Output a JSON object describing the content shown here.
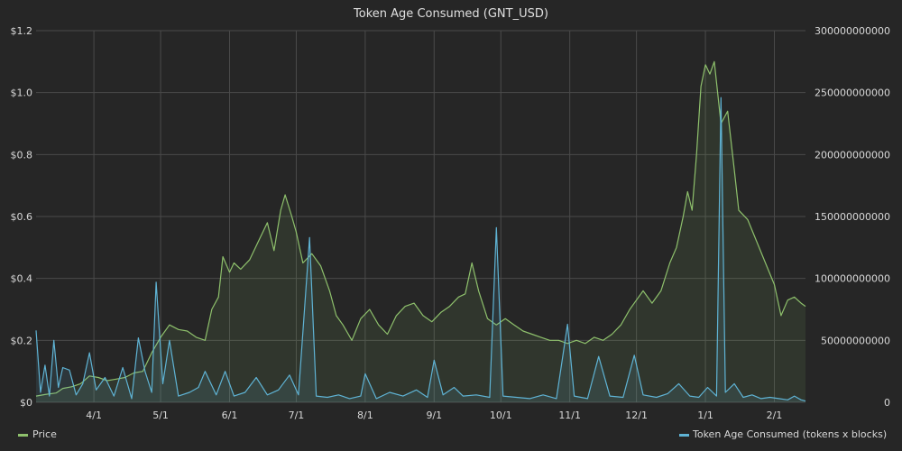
{
  "chart_data": {
    "type": "line",
    "title": "Token Age Consumed (GNT_USD)",
    "x_start": "2017-03-06",
    "x_end": "2018-02-15",
    "x_tick_labels": [
      "4/1",
      "5/1",
      "6/1",
      "7/1",
      "8/1",
      "9/1",
      "10/1",
      "11/1",
      "12/1",
      "1/1",
      "2/1"
    ],
    "x_tick_dates": [
      "2017-04-01",
      "2017-05-01",
      "2017-06-01",
      "2017-07-01",
      "2017-08-01",
      "2017-09-01",
      "2017-10-01",
      "2017-11-01",
      "2017-12-01",
      "2018-01-01",
      "2018-02-01"
    ],
    "y_left": {
      "ylim": [
        0,
        1.2
      ],
      "ticks": [
        0,
        0.2,
        0.4,
        0.6,
        0.8,
        1.0,
        1.2
      ],
      "tick_labels": [
        "$0",
        "$0.2",
        "$0.4",
        "$0.6",
        "$0.8",
        "$1.0",
        "$1.2"
      ]
    },
    "y_right": {
      "ylim": [
        0,
        300000000000
      ],
      "ticks": [
        0,
        50000000000,
        100000000000,
        150000000000,
        200000000000,
        250000000000,
        300000000000
      ],
      "tick_labels": [
        "0",
        "50000000000",
        "100000000000",
        "150000000000",
        "200000000000",
        "250000000000",
        "300000000000"
      ]
    },
    "series": [
      {
        "name": "Price",
        "axis": "left",
        "color": "#8ec06c",
        "points": [
          [
            "2017-03-06",
            0.02
          ],
          [
            "2017-03-10",
            0.025
          ],
          [
            "2017-03-15",
            0.03
          ],
          [
            "2017-03-18",
            0.045
          ],
          [
            "2017-03-22",
            0.05
          ],
          [
            "2017-03-26",
            0.06
          ],
          [
            "2017-03-30",
            0.085
          ],
          [
            "2017-04-03",
            0.08
          ],
          [
            "2017-04-07",
            0.07
          ],
          [
            "2017-04-11",
            0.075
          ],
          [
            "2017-04-15",
            0.08
          ],
          [
            "2017-04-19",
            0.095
          ],
          [
            "2017-04-23",
            0.1
          ],
          [
            "2017-04-27",
            0.16
          ],
          [
            "2017-05-01",
            0.21
          ],
          [
            "2017-05-05",
            0.25
          ],
          [
            "2017-05-09",
            0.235
          ],
          [
            "2017-05-13",
            0.23
          ],
          [
            "2017-05-17",
            0.21
          ],
          [
            "2017-05-21",
            0.2
          ],
          [
            "2017-05-24",
            0.3
          ],
          [
            "2017-05-27",
            0.34
          ],
          [
            "2017-05-29",
            0.47
          ],
          [
            "2017-06-01",
            0.42
          ],
          [
            "2017-06-03",
            0.45
          ],
          [
            "2017-06-06",
            0.43
          ],
          [
            "2017-06-10",
            0.46
          ],
          [
            "2017-06-14",
            0.52
          ],
          [
            "2017-06-18",
            0.58
          ],
          [
            "2017-06-21",
            0.49
          ],
          [
            "2017-06-24",
            0.62
          ],
          [
            "2017-06-26",
            0.67
          ],
          [
            "2017-06-29",
            0.6
          ],
          [
            "2017-07-01",
            0.55
          ],
          [
            "2017-07-04",
            0.45
          ],
          [
            "2017-07-08",
            0.48
          ],
          [
            "2017-07-12",
            0.44
          ],
          [
            "2017-07-16",
            0.36
          ],
          [
            "2017-07-19",
            0.28
          ],
          [
            "2017-07-22",
            0.25
          ],
          [
            "2017-07-26",
            0.2
          ],
          [
            "2017-07-30",
            0.27
          ],
          [
            "2017-08-03",
            0.3
          ],
          [
            "2017-08-07",
            0.25
          ],
          [
            "2017-08-11",
            0.22
          ],
          [
            "2017-08-15",
            0.28
          ],
          [
            "2017-08-19",
            0.31
          ],
          [
            "2017-08-23",
            0.32
          ],
          [
            "2017-08-27",
            0.28
          ],
          [
            "2017-08-31",
            0.26
          ],
          [
            "2017-09-04",
            0.29
          ],
          [
            "2017-09-08",
            0.31
          ],
          [
            "2017-09-12",
            0.34
          ],
          [
            "2017-09-15",
            0.35
          ],
          [
            "2017-09-18",
            0.45
          ],
          [
            "2017-09-21",
            0.36
          ],
          [
            "2017-09-25",
            0.27
          ],
          [
            "2017-09-29",
            0.25
          ],
          [
            "2017-10-03",
            0.27
          ],
          [
            "2017-10-07",
            0.25
          ],
          [
            "2017-10-11",
            0.23
          ],
          [
            "2017-10-15",
            0.22
          ],
          [
            "2017-10-19",
            0.21
          ],
          [
            "2017-10-23",
            0.2
          ],
          [
            "2017-10-27",
            0.2
          ],
          [
            "2017-10-31",
            0.19
          ],
          [
            "2017-11-04",
            0.2
          ],
          [
            "2017-11-08",
            0.19
          ],
          [
            "2017-11-12",
            0.21
          ],
          [
            "2017-11-16",
            0.2
          ],
          [
            "2017-11-20",
            0.22
          ],
          [
            "2017-11-24",
            0.25
          ],
          [
            "2017-11-28",
            0.3
          ],
          [
            "2017-12-01",
            0.33
          ],
          [
            "2017-12-04",
            0.36
          ],
          [
            "2017-12-08",
            0.32
          ],
          [
            "2017-12-12",
            0.36
          ],
          [
            "2017-12-16",
            0.45
          ],
          [
            "2017-12-19",
            0.5
          ],
          [
            "2017-12-22",
            0.6
          ],
          [
            "2017-12-24",
            0.68
          ],
          [
            "2017-12-26",
            0.62
          ],
          [
            "2017-12-28",
            0.8
          ],
          [
            "2017-12-30",
            1.02
          ],
          [
            "2018-01-01",
            1.09
          ],
          [
            "2018-01-03",
            1.06
          ],
          [
            "2018-01-05",
            1.1
          ],
          [
            "2018-01-08",
            0.9
          ],
          [
            "2018-01-11",
            0.94
          ],
          [
            "2018-01-14",
            0.75
          ],
          [
            "2018-01-16",
            0.62
          ],
          [
            "2018-01-20",
            0.59
          ],
          [
            "2018-01-24",
            0.52
          ],
          [
            "2018-01-28",
            0.45
          ],
          [
            "2018-02-01",
            0.38
          ],
          [
            "2018-02-04",
            0.28
          ],
          [
            "2018-02-07",
            0.33
          ],
          [
            "2018-02-10",
            0.34
          ],
          [
            "2018-02-13",
            0.32
          ],
          [
            "2018-02-15",
            0.31
          ]
        ]
      },
      {
        "name": "Token Age Consumed (tokens x blocks)",
        "axis": "right",
        "color": "#5fb3d4",
        "points": [
          [
            "2017-03-06",
            58000000000
          ],
          [
            "2017-03-08",
            8000000000
          ],
          [
            "2017-03-10",
            30000000000
          ],
          [
            "2017-03-12",
            5000000000
          ],
          [
            "2017-03-14",
            50000000000
          ],
          [
            "2017-03-16",
            12000000000
          ],
          [
            "2017-03-18",
            28000000000
          ],
          [
            "2017-03-21",
            26000000000
          ],
          [
            "2017-03-24",
            6000000000
          ],
          [
            "2017-03-27",
            15000000000
          ],
          [
            "2017-03-30",
            40000000000
          ],
          [
            "2017-04-02",
            10000000000
          ],
          [
            "2017-04-06",
            20000000000
          ],
          [
            "2017-04-10",
            5000000000
          ],
          [
            "2017-04-14",
            28000000000
          ],
          [
            "2017-04-18",
            3000000000
          ],
          [
            "2017-04-21",
            52000000000
          ],
          [
            "2017-04-24",
            25000000000
          ],
          [
            "2017-04-27",
            8000000000
          ],
          [
            "2017-04-29",
            97000000000
          ],
          [
            "2017-05-02",
            15000000000
          ],
          [
            "2017-05-05",
            50000000000
          ],
          [
            "2017-05-09",
            5000000000
          ],
          [
            "2017-05-14",
            8000000000
          ],
          [
            "2017-05-18",
            12000000000
          ],
          [
            "2017-05-21",
            25000000000
          ],
          [
            "2017-05-26",
            6000000000
          ],
          [
            "2017-05-30",
            25000000000
          ],
          [
            "2017-06-03",
            5000000000
          ],
          [
            "2017-06-08",
            8000000000
          ],
          [
            "2017-06-13",
            20000000000
          ],
          [
            "2017-06-18",
            6000000000
          ],
          [
            "2017-06-23",
            10000000000
          ],
          [
            "2017-06-28",
            22000000000
          ],
          [
            "2017-07-02",
            6000000000
          ],
          [
            "2017-07-07",
            133000000000
          ],
          [
            "2017-07-10",
            5000000000
          ],
          [
            "2017-07-15",
            4000000000
          ],
          [
            "2017-07-20",
            6000000000
          ],
          [
            "2017-07-25",
            3000000000
          ],
          [
            "2017-07-30",
            5000000000
          ],
          [
            "2017-08-01",
            23000000000
          ],
          [
            "2017-08-06",
            3000000000
          ],
          [
            "2017-08-12",
            8000000000
          ],
          [
            "2017-08-18",
            5000000000
          ],
          [
            "2017-08-24",
            10000000000
          ],
          [
            "2017-08-29",
            4000000000
          ],
          [
            "2017-09-01",
            34000000000
          ],
          [
            "2017-09-05",
            6000000000
          ],
          [
            "2017-09-10",
            12000000000
          ],
          [
            "2017-09-14",
            5000000000
          ],
          [
            "2017-09-20",
            6000000000
          ],
          [
            "2017-09-26",
            4000000000
          ],
          [
            "2017-09-29",
            141000000000
          ],
          [
            "2017-10-02",
            5000000000
          ],
          [
            "2017-10-08",
            4000000000
          ],
          [
            "2017-10-14",
            3000000000
          ],
          [
            "2017-10-20",
            6000000000
          ],
          [
            "2017-10-26",
            3000000000
          ],
          [
            "2017-10-31",
            63000000000
          ],
          [
            "2017-11-03",
            5000000000
          ],
          [
            "2017-11-09",
            3000000000
          ],
          [
            "2017-11-14",
            37000000000
          ],
          [
            "2017-11-19",
            5000000000
          ],
          [
            "2017-11-25",
            4000000000
          ],
          [
            "2017-11-30",
            38000000000
          ],
          [
            "2017-12-04",
            6000000000
          ],
          [
            "2017-12-10",
            4000000000
          ],
          [
            "2017-12-15",
            7000000000
          ],
          [
            "2017-12-20",
            15000000000
          ],
          [
            "2017-12-25",
            5000000000
          ],
          [
            "2017-12-29",
            4000000000
          ],
          [
            "2018-01-02",
            12000000000
          ],
          [
            "2018-01-06",
            5000000000
          ],
          [
            "2018-01-08",
            246000000000
          ],
          [
            "2018-01-10",
            8000000000
          ],
          [
            "2018-01-14",
            15000000000
          ],
          [
            "2018-01-18",
            4000000000
          ],
          [
            "2018-01-22",
            6000000000
          ],
          [
            "2018-01-26",
            3000000000
          ],
          [
            "2018-01-30",
            4000000000
          ],
          [
            "2018-02-03",
            3000000000
          ],
          [
            "2018-02-07",
            2000000000
          ],
          [
            "2018-02-10",
            5000000000
          ],
          [
            "2018-02-13",
            2000000000
          ],
          [
            "2018-02-15",
            1000000000
          ]
        ]
      }
    ],
    "grid": true,
    "legend_placement": "bottom"
  }
}
